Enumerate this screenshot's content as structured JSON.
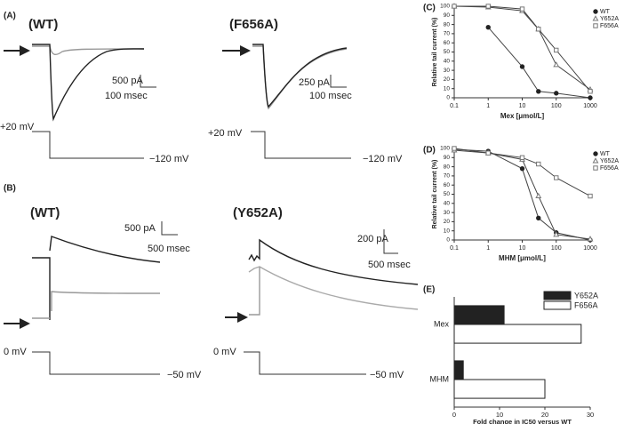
{
  "trace_panels": [
    {
      "label": "(A)",
      "title": "(WT)",
      "scale_y": "500 pA",
      "scale_x": "100 msec",
      "v_hold": "+20 mV",
      "v_step": "−120 mV"
    },
    {
      "title": "(F656A)",
      "scale_y": "250 pA",
      "scale_x": "100 msec",
      "v_hold": "+20 mV",
      "v_step": "−120 mV"
    },
    {
      "label": "(B)",
      "title": "(WT)",
      "scale_y": "500 pA",
      "scale_x": "500 msec",
      "v_hold": "0 mV",
      "v_step": "−50 mV"
    },
    {
      "title": "(Y652A)",
      "scale_y": "200 pA",
      "scale_x": "500 msec",
      "v_hold": "0 mV",
      "v_step": "−50 mV"
    }
  ],
  "chart_data": [
    {
      "type": "line",
      "panel_label": "(C)",
      "x_label": "Mex [μmol/L]",
      "y_label": "Relative tail current (%)",
      "xscale": "log",
      "xlim": [
        0.1,
        1000
      ],
      "xticks": [
        0.1,
        1,
        10,
        100,
        1000
      ],
      "ylim": [
        0,
        100
      ],
      "yticks": [
        0,
        10,
        20,
        30,
        40,
        50,
        60,
        70,
        80,
        90,
        100
      ],
      "legend": "upper right",
      "series": [
        {
          "name": "WT",
          "color": "#222222",
          "marker": "circle",
          "x": [
            1,
            10,
            30,
            100,
            1000
          ],
          "values": [
            77,
            34,
            7,
            5,
            0
          ]
        },
        {
          "name": "Y652A",
          "color": "#777777",
          "marker": "open-triangle",
          "x": [
            0.1,
            1,
            10,
            30,
            100,
            1000
          ],
          "values": [
            100,
            99,
            95,
            75,
            36,
            9
          ]
        },
        {
          "name": "F656A",
          "color": "#777777",
          "marker": "open-square",
          "x": [
            0.1,
            1,
            10,
            30,
            100,
            1000
          ],
          "values": [
            100,
            100,
            97,
            75,
            52,
            7
          ]
        }
      ]
    },
    {
      "type": "line",
      "panel_label": "(D)",
      "x_label": "MHM [μmol/L]",
      "y_label": "Relative tail current (%)",
      "xscale": "log",
      "xlim": [
        0.1,
        1000
      ],
      "xticks": [
        0.1,
        1,
        10,
        100,
        1000
      ],
      "ylim": [
        0,
        100
      ],
      "yticks": [
        0,
        10,
        20,
        30,
        40,
        50,
        60,
        70,
        80,
        90,
        100
      ],
      "legend": "upper right",
      "series": [
        {
          "name": "WT",
          "color": "#222222",
          "marker": "circle",
          "x": [
            0.1,
            1,
            10,
            30,
            100,
            1000
          ],
          "values": [
            99,
            97,
            78,
            24,
            8,
            0
          ]
        },
        {
          "name": "Y652A",
          "color": "#777777",
          "marker": "open-triangle",
          "x": [
            0.1,
            1,
            10,
            30,
            100,
            1000
          ],
          "values": [
            98,
            95,
            88,
            48,
            6,
            1
          ]
        },
        {
          "name": "F656A",
          "color": "#777777",
          "marker": "open-square",
          "x": [
            0.1,
            1,
            10,
            30,
            100,
            1000
          ],
          "values": [
            100,
            95,
            90,
            83,
            68,
            48
          ]
        }
      ]
    },
    {
      "type": "bar",
      "orientation": "horizontal",
      "panel_label": "(E)",
      "x_label": "Fold change in IC50 versus WT",
      "categories": [
        "Mex",
        "MHM"
      ],
      "xlim": [
        0,
        30
      ],
      "xticks": [
        0,
        10,
        20,
        30
      ],
      "legend": "upper right",
      "series": [
        {
          "name": "Y652A",
          "color": "#222222",
          "values": [
            11,
            2
          ]
        },
        {
          "name": "F656A",
          "color": "#ffffff",
          "values": [
            28,
            20
          ]
        }
      ]
    }
  ]
}
